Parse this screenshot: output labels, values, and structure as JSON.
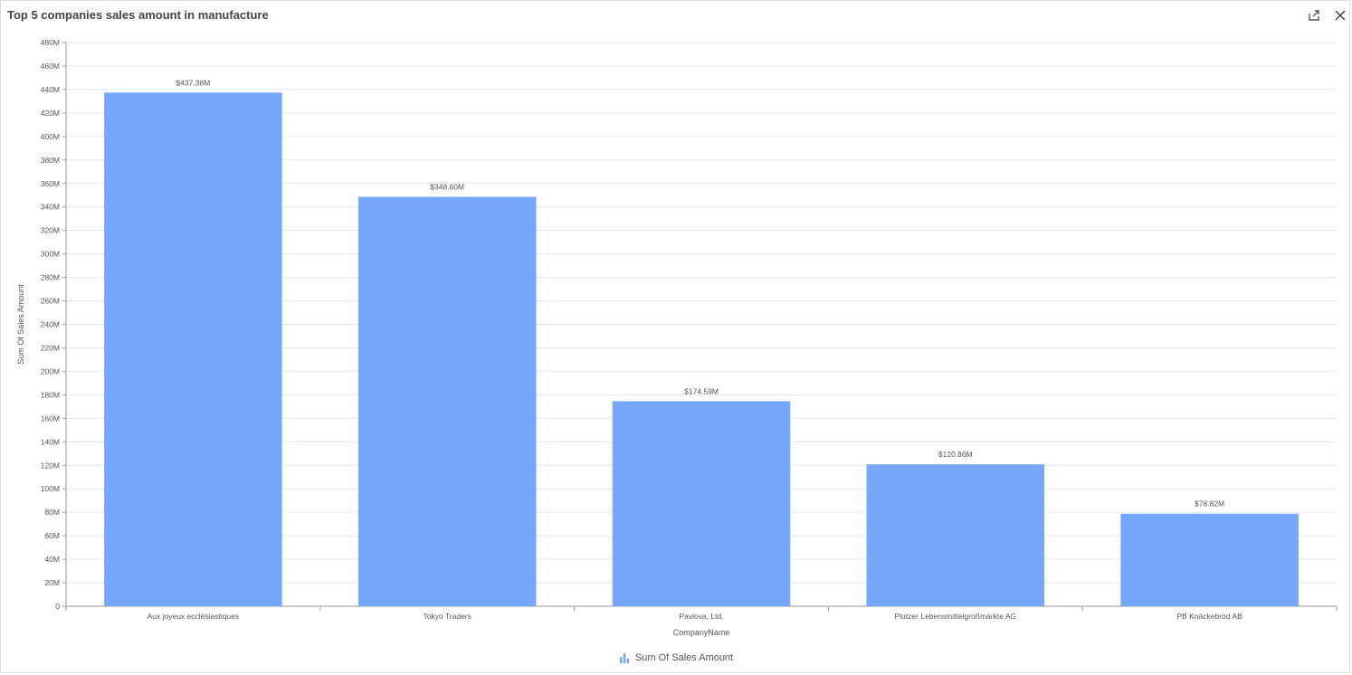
{
  "header": {
    "title": "Top 5 companies sales amount in manufacture",
    "export_icon": "export-icon",
    "close_icon": "close-icon"
  },
  "colors": {
    "bar": "#76a7fa",
    "grid": "#e6e6e6",
    "axis": "#9a9a9a",
    "text": "#555555"
  },
  "chart_data": {
    "type": "bar",
    "categories": [
      "Aux joyeux ecclésiastiques",
      "Tokyo Traders",
      "Pavlova, Ltd.",
      "Plutzer Lebensmittelgroßmärkte AG",
      "PB Knäckebröd AB"
    ],
    "series": [
      {
        "name": "Sum Of Sales Amount",
        "values": [
          437.38,
          348.6,
          174.59,
          120.86,
          78.82
        ],
        "labels": [
          "$437.38M",
          "$348.60M",
          "$174.59M",
          "$120.86M",
          "$78.82M"
        ]
      }
    ],
    "xlabel": "CompanyName",
    "ylabel": "Sum Of Sales Amount",
    "ylim": [
      0,
      480
    ],
    "yticks": [
      0,
      20,
      40,
      60,
      80,
      100,
      120,
      140,
      160,
      180,
      200,
      220,
      240,
      260,
      280,
      300,
      320,
      340,
      360,
      380,
      400,
      420,
      440,
      460,
      480
    ],
    "ytick_labels": [
      "0",
      "20M",
      "40M",
      "60M",
      "80M",
      "100M",
      "120M",
      "140M",
      "160M",
      "180M",
      "200M",
      "220M",
      "240M",
      "260M",
      "280M",
      "300M",
      "320M",
      "340M",
      "360M",
      "380M",
      "400M",
      "420M",
      "440M",
      "460M",
      "480M"
    ],
    "grid": true,
    "legend_position": "bottom"
  }
}
